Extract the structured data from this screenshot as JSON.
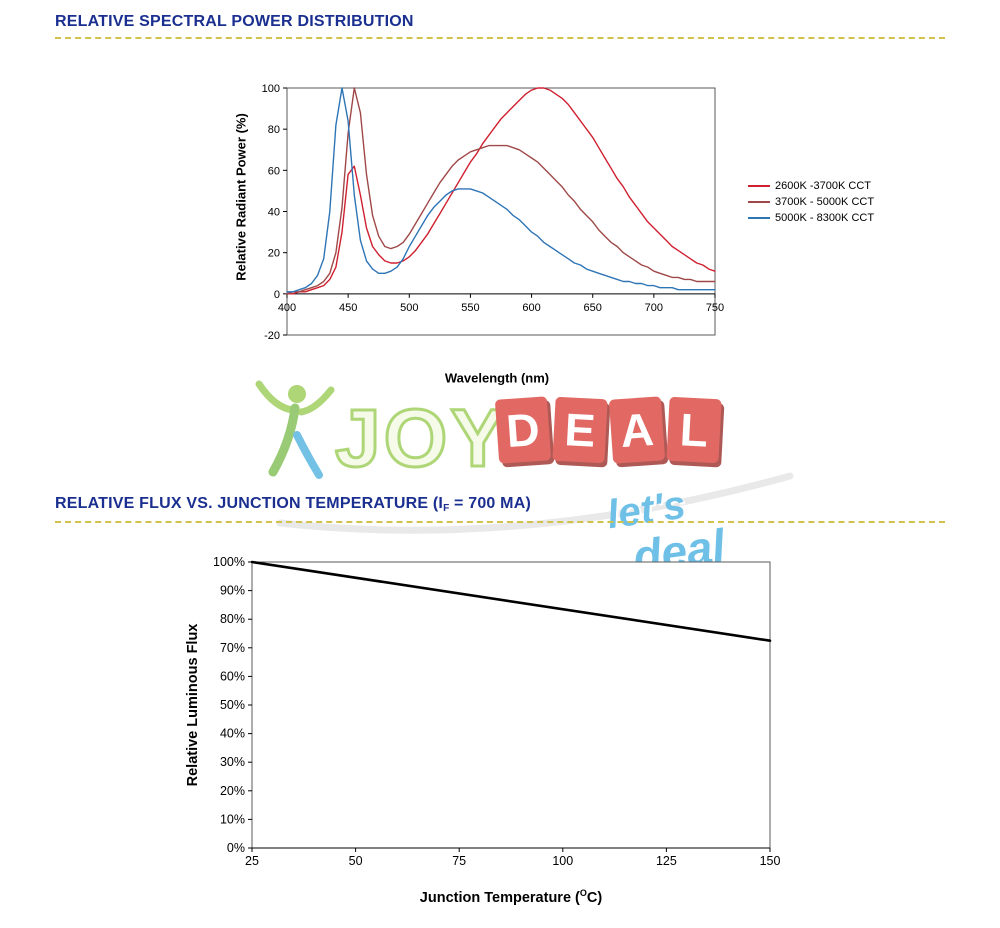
{
  "colors": {
    "heading": "#1b2f90",
    "rule": "#d2c14b",
    "axis": "#000000",
    "plot_border": "#5a5a5a"
  },
  "section1": {
    "title": "RELATIVE SPECTRAL POWER DISTRIBUTION"
  },
  "section2": {
    "title_pre": "RELATIVE FLUX VS. JUNCTION TEMPERATURE (I",
    "title_sub": "F",
    "title_post": " = 700 MA)"
  },
  "watermark": {
    "joy": "JOY",
    "deal_letters": [
      "D",
      "E",
      "A",
      "L"
    ],
    "tagline1": "let's",
    "tagline2": "deal"
  },
  "chart_data": [
    {
      "type": "line",
      "title": "RELATIVE SPECTRAL POWER DISTRIBUTION",
      "xlabel": "Wavelength (nm)",
      "ylabel": "Relative Radiant Power (%)",
      "xlim": [
        400,
        750
      ],
      "ylim": [
        -20,
        100
      ],
      "xticks": [
        400,
        450,
        500,
        550,
        600,
        650,
        700,
        750
      ],
      "yticks": [
        -20,
        0,
        20,
        40,
        60,
        80,
        100
      ],
      "grid": false,
      "legend_position": "right",
      "x_axis_at_zero": true,
      "series": [
        {
          "name": "2600K -3700K CCT",
          "color": "#cf2030",
          "width": 1.4,
          "x_start": 400,
          "x_step": 5,
          "y": [
            0,
            0,
            1,
            1,
            2,
            3,
            4,
            7,
            13,
            30,
            58,
            62,
            48,
            32,
            23,
            19,
            16,
            15,
            15,
            16,
            18,
            21,
            25,
            29,
            34,
            39,
            44,
            49,
            54,
            59,
            64,
            68,
            73,
            77,
            81,
            85,
            88,
            91,
            94,
            97,
            99,
            100,
            100,
            99,
            97,
            95,
            92,
            88,
            84,
            80,
            76,
            71,
            66,
            61,
            56,
            52,
            47,
            43,
            39,
            35,
            32,
            29,
            26,
            23,
            21,
            19,
            17,
            15,
            14,
            12,
            11
          ]
        },
        {
          "name": "3700K - 5000K CCT",
          "color": "#a04848",
          "width": 1.4,
          "x_start": 400,
          "x_step": 5,
          "y": [
            0,
            1,
            1,
            2,
            3,
            4,
            6,
            10,
            20,
            42,
            78,
            100,
            88,
            58,
            38,
            28,
            23,
            22,
            23,
            25,
            29,
            34,
            39,
            44,
            49,
            54,
            58,
            62,
            65,
            67,
            69,
            70,
            71,
            72,
            72,
            72,
            72,
            71,
            70,
            68,
            66,
            64,
            61,
            58,
            55,
            52,
            48,
            45,
            41,
            38,
            35,
            31,
            28,
            25,
            23,
            20,
            18,
            16,
            14,
            13,
            11,
            10,
            9,
            8,
            8,
            7,
            7,
            6,
            6,
            6,
            6
          ]
        },
        {
          "name": "5000K - 8300K CCT",
          "color": "#2e75b6",
          "width": 1.4,
          "x_start": 400,
          "x_step": 5,
          "y": [
            1,
            1,
            2,
            3,
            5,
            9,
            17,
            40,
            82,
            100,
            84,
            48,
            26,
            16,
            12,
            10,
            10,
            11,
            13,
            17,
            23,
            28,
            33,
            38,
            42,
            45,
            48,
            50,
            51,
            51,
            51,
            50,
            49,
            47,
            45,
            43,
            41,
            38,
            36,
            33,
            30,
            28,
            25,
            23,
            21,
            19,
            17,
            15,
            14,
            12,
            11,
            10,
            9,
            8,
            7,
            6,
            6,
            5,
            5,
            4,
            4,
            3,
            3,
            3,
            2,
            2,
            2,
            2,
            2,
            2,
            2
          ]
        }
      ]
    },
    {
      "type": "line",
      "title": "RELATIVE FLUX VS. JUNCTION TEMPERATURE (IF = 700 MA)",
      "xlabel": "Junction Temperature (°C)",
      "xlabel_parts": {
        "pre": "Junction Temperature (",
        "sup": "O",
        "post": "C)"
      },
      "ylabel": "Relative Luminous Flux",
      "xlim": [
        25,
        150
      ],
      "ylim": [
        0,
        100
      ],
      "xticks": [
        25,
        50,
        75,
        100,
        125,
        150
      ],
      "yticks": [
        0,
        10,
        20,
        30,
        40,
        50,
        60,
        70,
        80,
        90,
        100
      ],
      "ytick_suffix": "%",
      "grid": false,
      "legend_position": "none",
      "x_axis_at_zero": false,
      "series": [
        {
          "name": "Relative Luminous Flux",
          "color": "#000000",
          "width": 2.6,
          "x": [
            25,
            150
          ],
          "y": [
            100,
            72.5
          ]
        }
      ]
    }
  ]
}
